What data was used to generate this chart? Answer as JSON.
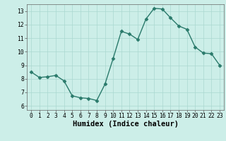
{
  "x": [
    0,
    1,
    2,
    3,
    4,
    5,
    6,
    7,
    8,
    9,
    10,
    11,
    12,
    13,
    14,
    15,
    16,
    17,
    18,
    19,
    20,
    21,
    22,
    23
  ],
  "y": [
    8.5,
    8.1,
    8.15,
    8.25,
    7.85,
    6.75,
    6.6,
    6.55,
    6.4,
    7.6,
    9.5,
    11.5,
    11.3,
    10.9,
    12.4,
    13.2,
    13.15,
    12.5,
    11.9,
    11.65,
    10.35,
    9.9,
    9.85,
    9.0
  ],
  "line_color": "#2a7a6b",
  "marker": "D",
  "markersize": 2.5,
  "linewidth": 1.0,
  "bg_color": "#cceee8",
  "grid_color": "#aad8d0",
  "xlabel": "Humidex (Indice chaleur)",
  "xlim": [
    -0.5,
    23.5
  ],
  "ylim": [
    5.7,
    13.5
  ],
  "yticks": [
    6,
    7,
    8,
    9,
    10,
    11,
    12,
    13
  ],
  "xticks": [
    0,
    1,
    2,
    3,
    4,
    5,
    6,
    7,
    8,
    9,
    10,
    11,
    12,
    13,
    14,
    15,
    16,
    17,
    18,
    19,
    20,
    21,
    22,
    23
  ],
  "tick_labelsize": 5.8,
  "xlabel_fontsize": 7.5
}
